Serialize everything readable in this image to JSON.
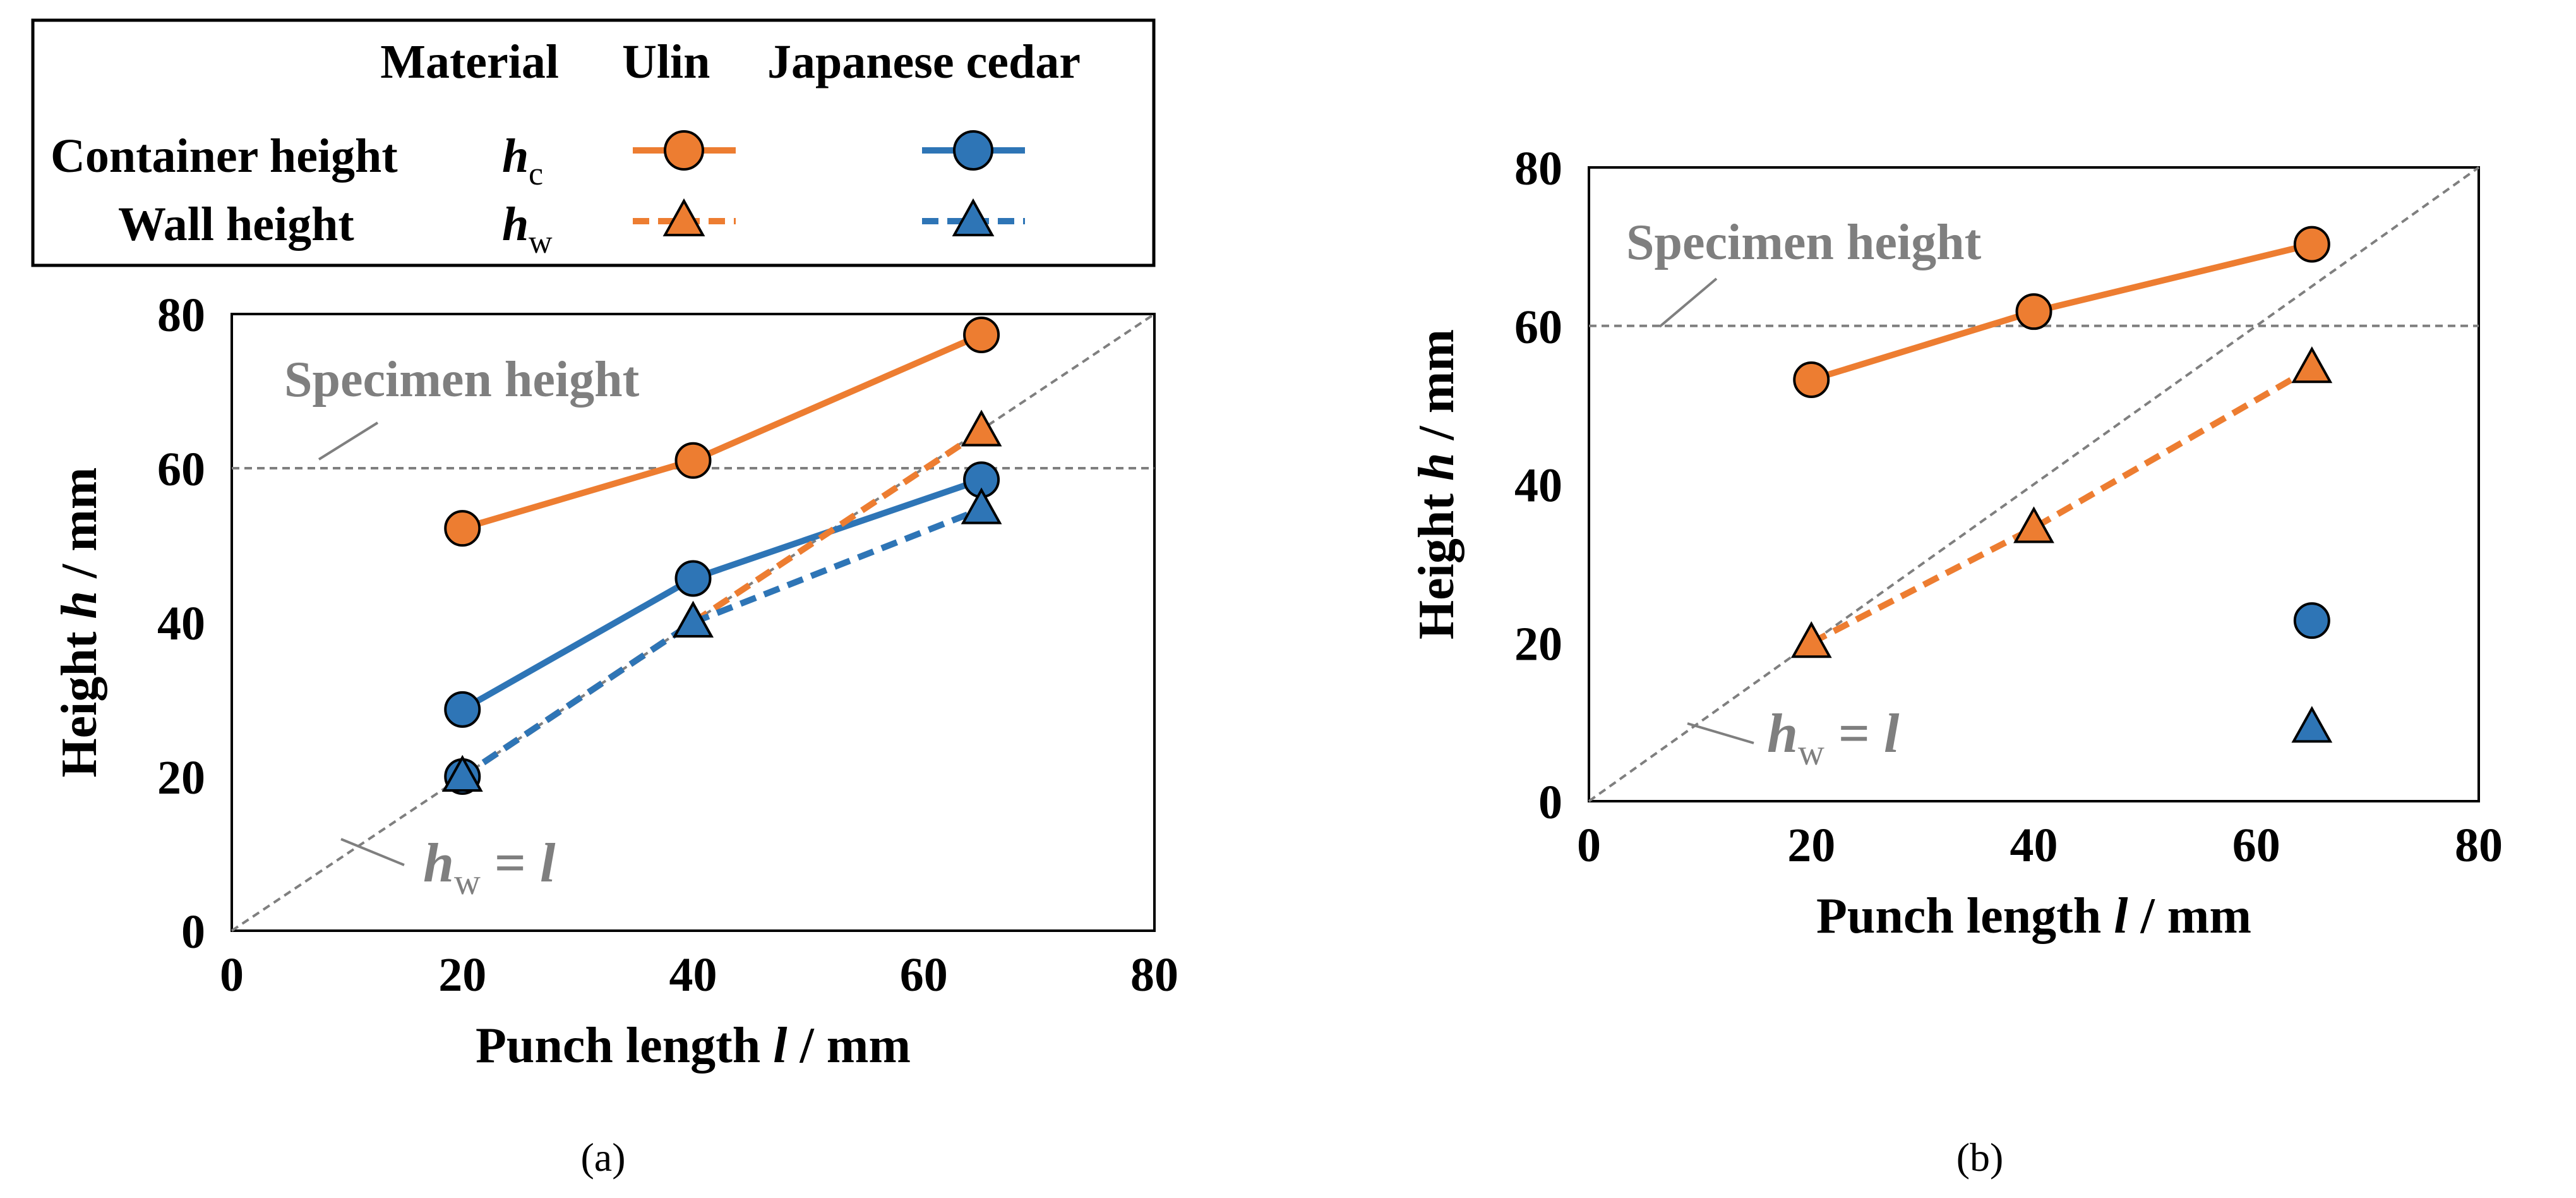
{
  "legend": {
    "material_header": "Material",
    "ulin_header": "Ulin",
    "cedar_header": "Japanese cedar",
    "container_label": "Container height",
    "container_symbol": "h",
    "container_subscript": "c",
    "wall_label": "Wall height",
    "wall_symbol": "h",
    "wall_subscript": "w"
  },
  "colors": {
    "ulin": "#ED7D31",
    "cedar": "#2E75B6",
    "reference": "#7F7F7F"
  },
  "chart_data": [
    {
      "panel": "(a)",
      "type": "line",
      "xlabel_main": "Punch length ",
      "xlabel_var": "l",
      "xlabel_unit": " / mm",
      "ylabel_main": "Height ",
      "ylabel_var": "h",
      "ylabel_unit": " / mm",
      "xlim": [
        0,
        80
      ],
      "ylim": [
        0,
        80
      ],
      "xticks": [
        0,
        20,
        40,
        60,
        80
      ],
      "yticks": [
        0,
        20,
        40,
        60,
        80
      ],
      "specimen_height": 60,
      "specimen_label": "Specimen height",
      "ref_line_label_var": "h",
      "ref_line_label_sub": "w",
      "ref_line_label_rest": " = ",
      "ref_line_label_l": "l",
      "series": [
        {
          "name": "Ulin container height",
          "material": "ulin",
          "marker": "circle",
          "dash": false,
          "x": [
            20,
            40,
            65
          ],
          "y": [
            52.2,
            61,
            77.3
          ]
        },
        {
          "name": "Japanese cedar container height",
          "material": "cedar",
          "marker": "circle",
          "dash": false,
          "x": [
            20,
            40,
            65
          ],
          "y": [
            28.7,
            45.7,
            58.5
          ]
        },
        {
          "name": "Ulin wall height",
          "material": "ulin",
          "marker": "triangle",
          "dash": true,
          "x": [
            20,
            40,
            65
          ],
          "y": [
            20,
            40,
            64.8
          ]
        },
        {
          "name": "Japanese cedar wall height",
          "material": "cedar",
          "marker": "triangle",
          "dash": true,
          "x": [
            20,
            40,
            65
          ],
          "y": [
            20,
            40,
            54.7
          ]
        }
      ],
      "extra_points": [
        {
          "material": "cedar",
          "marker": "circle",
          "x": 20,
          "y": 20
        }
      ]
    },
    {
      "panel": "(b)",
      "type": "line",
      "xlabel_main": "Punch length ",
      "xlabel_var": "l",
      "xlabel_unit": " / mm",
      "ylabel_main": "Height ",
      "ylabel_var": "h",
      "ylabel_unit": " / mm",
      "xlim": [
        0,
        80
      ],
      "ylim": [
        0,
        80
      ],
      "xticks": [
        0,
        20,
        40,
        60,
        80
      ],
      "yticks": [
        0,
        20,
        40,
        60,
        80
      ],
      "specimen_height": 60,
      "specimen_label": "Specimen height",
      "ref_line_label_var": "h",
      "ref_line_label_sub": "w",
      "ref_line_label_rest": " = ",
      "ref_line_label_l": "l",
      "series": [
        {
          "name": "Ulin container height",
          "material": "ulin",
          "marker": "circle",
          "dash": false,
          "x": [
            20,
            40,
            65
          ],
          "y": [
            53.2,
            61.8,
            70.3
          ]
        },
        {
          "name": "Ulin wall height",
          "material": "ulin",
          "marker": "triangle",
          "dash": true,
          "x": [
            20,
            40,
            65
          ],
          "y": [
            20,
            34.5,
            54.7
          ]
        },
        {
          "name": "Japanese cedar container height",
          "material": "cedar",
          "marker": "circle",
          "dash": false,
          "x": [
            65
          ],
          "y": [
            22.8
          ]
        },
        {
          "name": "Japanese cedar wall height",
          "material": "cedar",
          "marker": "triangle",
          "dash": true,
          "x": [
            65
          ],
          "y": [
            9.3
          ]
        }
      ],
      "extra_points": []
    }
  ]
}
